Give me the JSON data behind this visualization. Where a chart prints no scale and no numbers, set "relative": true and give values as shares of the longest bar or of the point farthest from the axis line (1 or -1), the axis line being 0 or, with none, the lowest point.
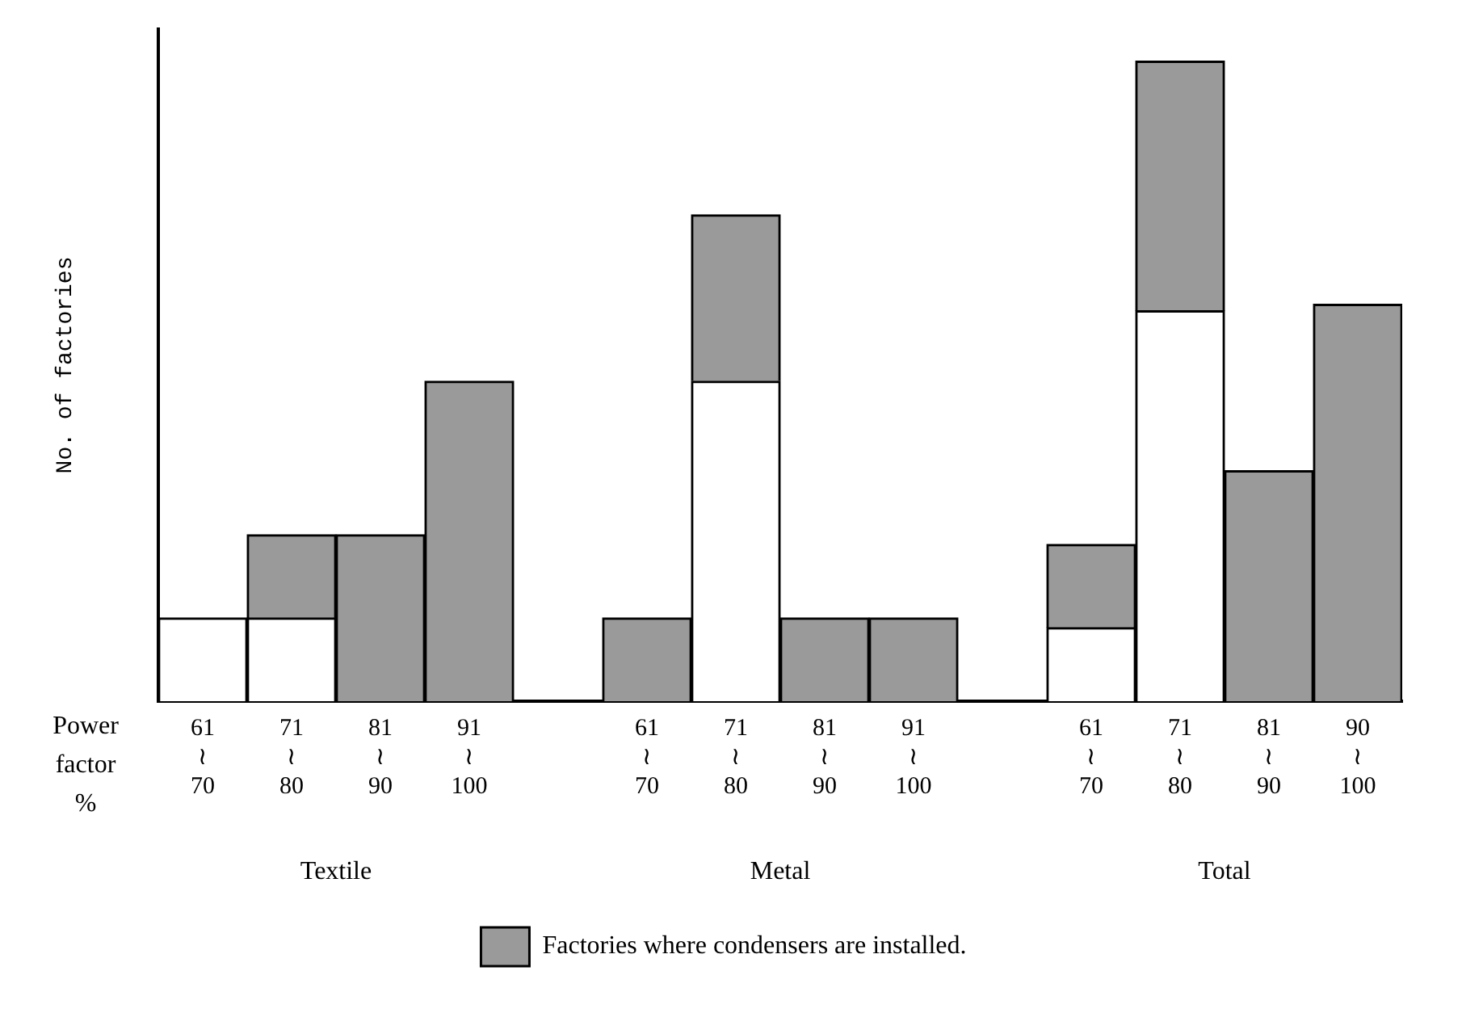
{
  "chart_data": {
    "type": "bar",
    "relative": true,
    "stacked": true,
    "grid": false,
    "legend": "bottom",
    "ylabel": "No. of factories",
    "xlabel": "Power factor %",
    "categories": [
      "61 ≀ 70",
      "71 ≀ 80",
      "81 ≀ 90",
      "91 ≀ 100",
      null,
      "61 ≀ 70",
      "71 ≀ 80",
      "81 ≀ 90",
      "91 ≀ 100",
      null,
      "61 ≀ 70",
      "71 ≀ 80",
      "81 ≀ 90",
      "90 ≀ 100"
    ],
    "series": [
      {
        "color": "#ffffff",
        "values": [
          0.13,
          0.13,
          0,
          0,
          null,
          0,
          0.5,
          0,
          0,
          null,
          0.115,
          0.61,
          0,
          0
        ]
      },
      {
        "name": "Factories where condensers are installed.",
        "color": "#9a9a9a",
        "values": [
          0,
          0.13,
          0.26,
          0.5,
          null,
          0.13,
          0.26,
          0.13,
          0.13,
          null,
          0.13,
          0.39,
          0.36,
          0.62
        ]
      }
    ],
    "annotations": [
      "Textile",
      "Metal",
      "Total"
    ]
  }
}
